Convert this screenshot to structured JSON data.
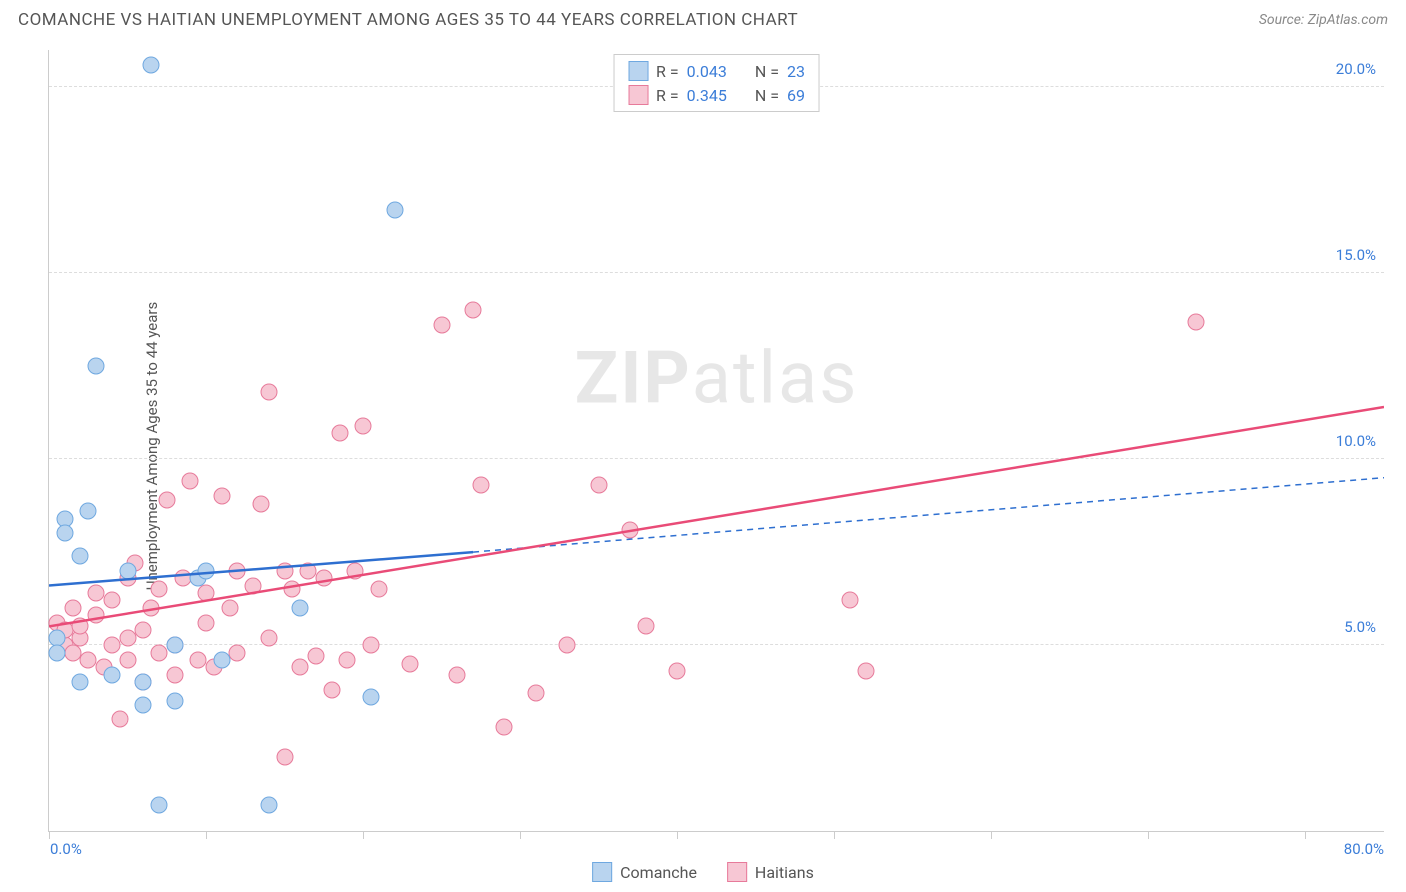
{
  "header": {
    "title": "COMANCHE VS HAITIAN UNEMPLOYMENT AMONG AGES 35 TO 44 YEARS CORRELATION CHART",
    "source": "Source: ZipAtlas.com"
  },
  "ylabel": "Unemployment Among Ages 35 to 44 years",
  "watermark": {
    "bold": "ZIP",
    "rest": "atlas"
  },
  "colors": {
    "series1_fill": "#b9d4ef",
    "series1_stroke": "#6fa8e0",
    "series2_fill": "#f7c7d4",
    "series2_stroke": "#e77a9a",
    "line1": "#2e6fd0",
    "line2": "#e94b77",
    "grid": "#dddddd",
    "axis": "#cccccc",
    "tick_label": "#3b7dd8",
    "text": "#555555"
  },
  "axes": {
    "xmin": 0,
    "xmax": 85,
    "ymin": 0,
    "ymax": 21,
    "x_ticks": [
      0,
      10,
      20,
      30,
      40,
      50,
      60,
      70,
      80
    ],
    "x_labels": [
      {
        "x": 0,
        "label": "0.0%",
        "align": "left"
      },
      {
        "x": 80,
        "label": "80.0%",
        "align": "right"
      }
    ],
    "y_gridlines": [
      5,
      10,
      15,
      20
    ],
    "y_labels": [
      {
        "y": 5,
        "label": "5.0%"
      },
      {
        "y": 10,
        "label": "10.0%"
      },
      {
        "y": 15,
        "label": "15.0%"
      },
      {
        "y": 20,
        "label": "20.0%"
      }
    ]
  },
  "stats": [
    {
      "series": "s1",
      "R_label": "R =",
      "R": "0.043",
      "N_label": "N =",
      "N": "23"
    },
    {
      "series": "s2",
      "R_label": "R =",
      "R": "0.345",
      "N_label": "N =",
      "N": "69"
    }
  ],
  "legend": [
    {
      "series": "s1",
      "label": "Comanche"
    },
    {
      "series": "s2",
      "label": "Haitians"
    }
  ],
  "trend_lines": {
    "s1": {
      "x1": 0,
      "y1": 6.6,
      "solid_to_x": 27,
      "y_at_solid": 7.5,
      "x2": 85,
      "y2": 9.5
    },
    "s2": {
      "x1": 0,
      "y1": 5.5,
      "x2": 85,
      "y2": 11.4
    }
  },
  "points": {
    "s1": [
      [
        0.5,
        5.2
      ],
      [
        0.5,
        4.8
      ],
      [
        1,
        8.4
      ],
      [
        1,
        8.0
      ],
      [
        2,
        7.4
      ],
      [
        2.5,
        8.6
      ],
      [
        2,
        4.0
      ],
      [
        3,
        12.5
      ],
      [
        4,
        4.2
      ],
      [
        5,
        7.0
      ],
      [
        6,
        3.4
      ],
      [
        6,
        4.0
      ],
      [
        6.5,
        20.6
      ],
      [
        7,
        0.7
      ],
      [
        8,
        3.5
      ],
      [
        8,
        5.0
      ],
      [
        9.5,
        6.8
      ],
      [
        10,
        7.0
      ],
      [
        11,
        4.6
      ],
      [
        14,
        0.7
      ],
      [
        16,
        6.0
      ],
      [
        20.5,
        3.6
      ],
      [
        22,
        16.7
      ]
    ],
    "s2": [
      [
        0.5,
        5.6
      ],
      [
        1,
        5.0
      ],
      [
        1,
        5.4
      ],
      [
        1.5,
        6.0
      ],
      [
        1.5,
        4.8
      ],
      [
        2,
        5.2
      ],
      [
        2,
        5.5
      ],
      [
        2.5,
        4.6
      ],
      [
        3,
        5.8
      ],
      [
        3,
        6.4
      ],
      [
        3.5,
        4.4
      ],
      [
        4,
        5.0
      ],
      [
        4,
        6.2
      ],
      [
        4.5,
        3.0
      ],
      [
        5,
        4.6
      ],
      [
        5,
        5.2
      ],
      [
        5,
        6.8
      ],
      [
        5.5,
        7.2
      ],
      [
        6,
        4.0
      ],
      [
        6,
        5.4
      ],
      [
        6.5,
        6.0
      ],
      [
        7,
        4.8
      ],
      [
        7,
        6.5
      ],
      [
        7.5,
        8.9
      ],
      [
        8,
        4.2
      ],
      [
        8,
        5.0
      ],
      [
        8.5,
        6.8
      ],
      [
        9,
        9.4
      ],
      [
        9.5,
        4.6
      ],
      [
        10,
        5.6
      ],
      [
        10,
        6.4
      ],
      [
        10.5,
        4.4
      ],
      [
        11,
        9.0
      ],
      [
        11.5,
        6.0
      ],
      [
        12,
        7.0
      ],
      [
        12,
        4.8
      ],
      [
        13,
        6.6
      ],
      [
        13.5,
        8.8
      ],
      [
        14,
        5.2
      ],
      [
        14,
        11.8
      ],
      [
        15,
        7.0
      ],
      [
        15,
        2.0
      ],
      [
        15.5,
        6.5
      ],
      [
        16,
        4.4
      ],
      [
        16.5,
        7.0
      ],
      [
        17,
        4.7
      ],
      [
        17.5,
        6.8
      ],
      [
        18,
        3.8
      ],
      [
        18.5,
        10.7
      ],
      [
        19,
        4.6
      ],
      [
        19.5,
        7.0
      ],
      [
        20,
        10.9
      ],
      [
        20.5,
        5.0
      ],
      [
        21,
        6.5
      ],
      [
        23,
        4.5
      ],
      [
        25,
        13.6
      ],
      [
        26,
        4.2
      ],
      [
        27,
        14.0
      ],
      [
        27.5,
        9.3
      ],
      [
        29,
        2.8
      ],
      [
        31,
        3.7
      ],
      [
        33,
        5.0
      ],
      [
        35,
        9.3
      ],
      [
        37,
        8.1
      ],
      [
        38,
        5.5
      ],
      [
        40,
        4.3
      ],
      [
        51,
        6.2
      ],
      [
        52,
        4.3
      ],
      [
        73,
        13.7
      ]
    ]
  }
}
